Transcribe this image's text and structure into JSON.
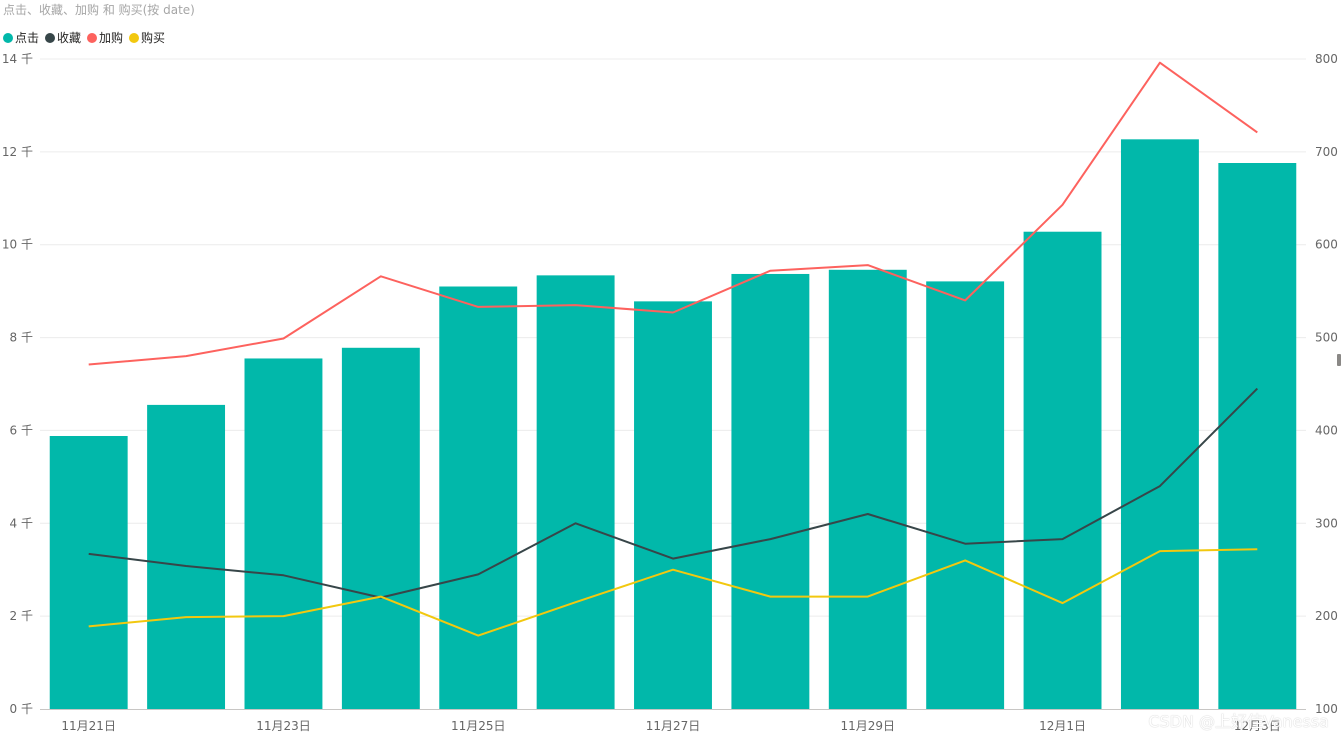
{
  "chart_data": {
    "type": "bar",
    "title": "点击、收藏、加购 和 购买(按 date)",
    "categories": [
      "11月21日",
      "11月22日",
      "11月23日",
      "11月24日",
      "11月25日",
      "11月26日",
      "11月27日",
      "11月28日",
      "11月29日",
      "11月30日",
      "12月1日",
      "12月2日",
      "12月3日"
    ],
    "tick_labels": [
      "11月21日",
      "11月23日",
      "11月25日",
      "11月27日",
      "11月29日",
      "12月1日",
      "12月3日"
    ],
    "legend": [
      "点击",
      "收藏",
      "加购",
      "购买"
    ],
    "legend_position": "top-left",
    "grid": true,
    "y_left": {
      "ylim": [
        0,
        14000
      ],
      "tick_labels": [
        "0 千",
        "2 千",
        "4 千",
        "6 千",
        "8 千",
        "10 千",
        "12 千",
        "14 千"
      ]
    },
    "y_right": {
      "ylim": [
        100,
        800
      ],
      "tick_labels": [
        "100",
        "200",
        "300",
        "400",
        "500",
        "600",
        "700",
        "800"
      ]
    },
    "series": [
      {
        "name": "点击",
        "kind": "bar",
        "axis": "left",
        "color": "#01b8aa",
        "values": [
          5880,
          6550,
          7550,
          7780,
          9100,
          9340,
          8780,
          9370,
          9460,
          9210,
          10280,
          12270,
          11760
        ]
      },
      {
        "name": "收藏",
        "kind": "line",
        "axis": "right",
        "color": "#374649",
        "values": [
          267,
          254,
          244,
          220,
          245,
          300,
          262,
          283,
          310,
          278,
          283,
          340,
          445
        ]
      },
      {
        "name": "加购",
        "kind": "line",
        "axis": "right",
        "color": "#fd625e",
        "values": [
          471,
          480,
          499,
          566,
          533,
          535,
          527,
          572,
          578,
          540,
          643,
          796,
          721
        ]
      },
      {
        "name": "购买",
        "kind": "line",
        "axis": "right",
        "color": "#f2c80f",
        "values": [
          189,
          199,
          200,
          221,
          179,
          215,
          250,
          221,
          221,
          260,
          214,
          270,
          272
        ]
      }
    ]
  },
  "watermark": "CSDN @上好佳Vanessa"
}
